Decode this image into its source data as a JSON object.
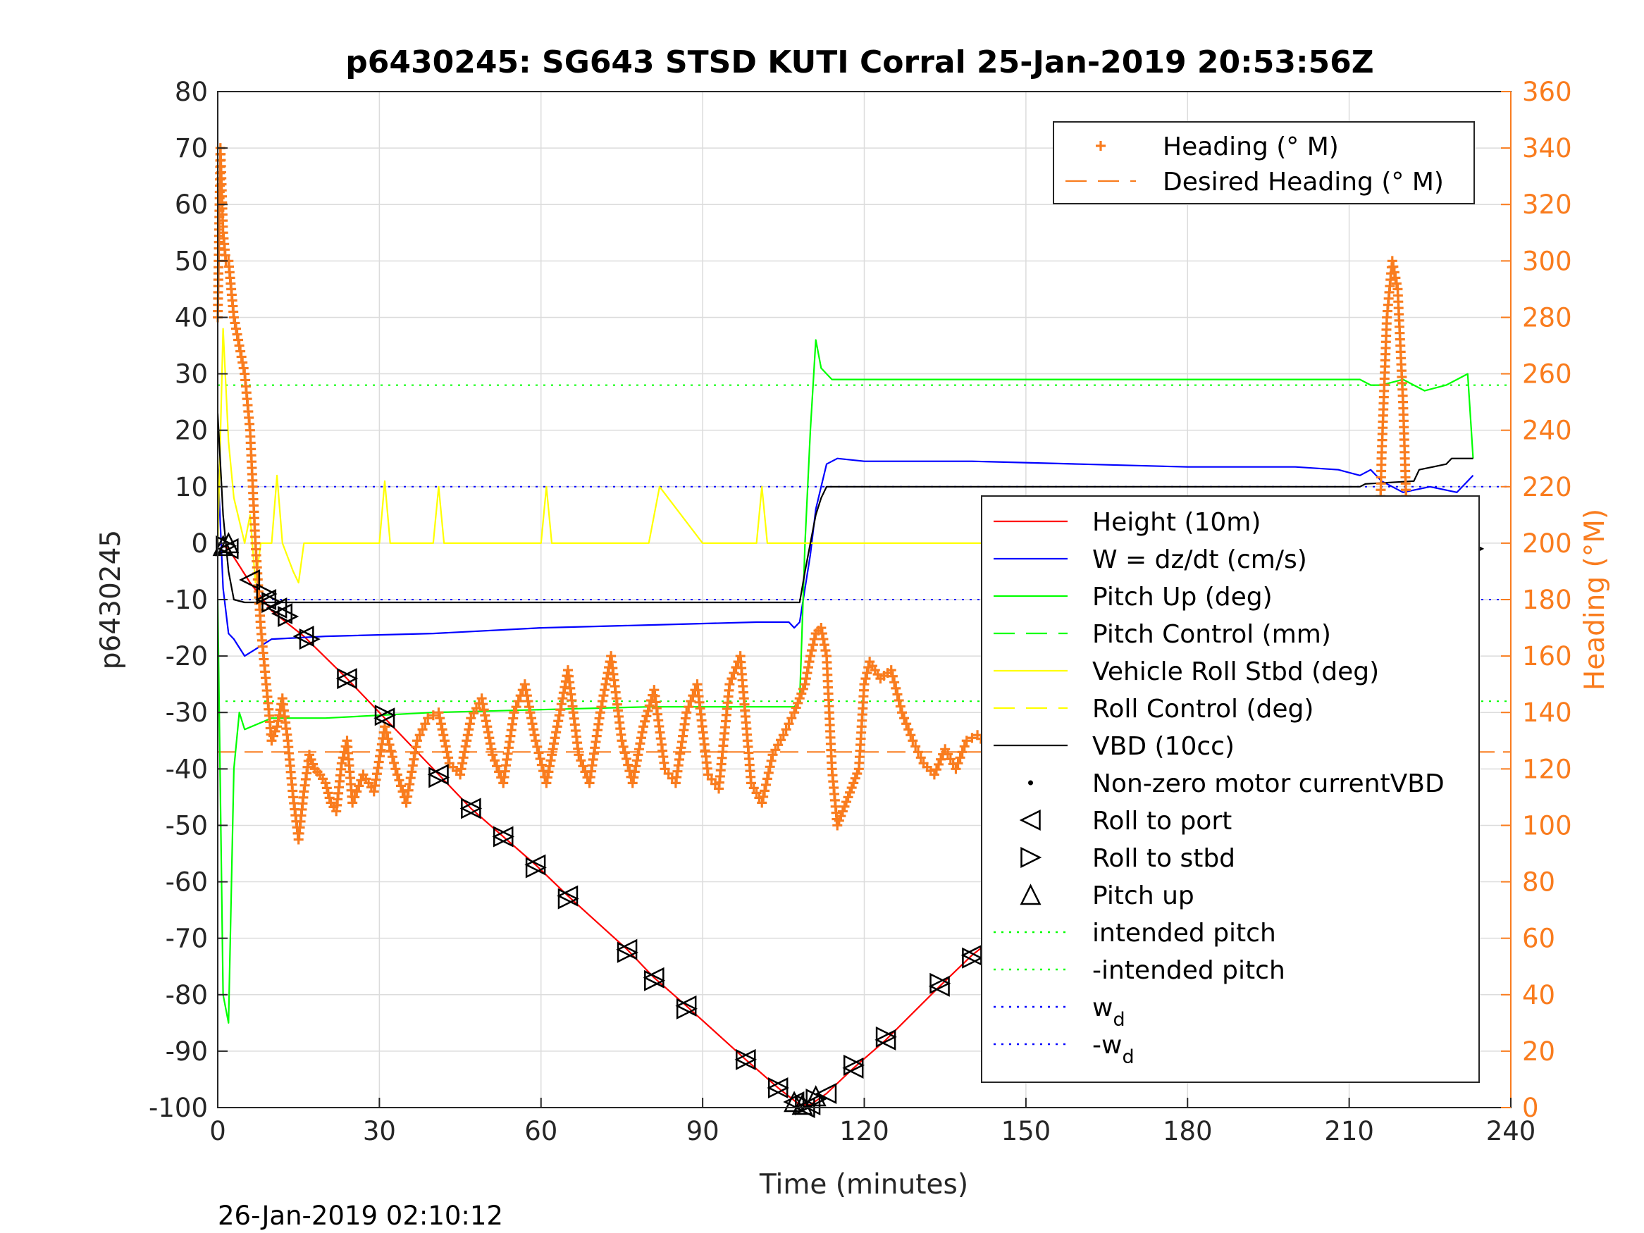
{
  "chart_data": {
    "type": "line",
    "title": "p6430245: SG643 STSD KUTI Corral 25-Jan-2019 20:53:56Z",
    "xlabel": "Time (minutes)",
    "ylabel": "p6430245",
    "ylabel_right": "Heading (°M)",
    "footer": "26-Jan-2019 02:10:12",
    "xlim": [
      0,
      240
    ],
    "ylim": [
      -100,
      80
    ],
    "ylim_right": [
      0,
      360
    ],
    "x_ticks": [
      "0",
      "30",
      "60",
      "90",
      "120",
      "150",
      "180",
      "210",
      "240"
    ],
    "y_ticks": [
      "-100",
      "-90",
      "-80",
      "-70",
      "-60",
      "-50",
      "-40",
      "-30",
      "-20",
      "-10",
      "0",
      "10",
      "20",
      "30",
      "40",
      "50",
      "60",
      "70",
      "80"
    ],
    "y_ticks_right": [
      "0",
      "20",
      "40",
      "60",
      "80",
      "100",
      "120",
      "140",
      "160",
      "180",
      "200",
      "220",
      "240",
      "260",
      "280",
      "300",
      "320",
      "340",
      "360"
    ],
    "grid": true,
    "legend_top": {
      "placement": "top-right",
      "entries": [
        {
          "label": "Heading (° M)",
          "color": "#f97c1e",
          "style": "plus"
        },
        {
          "label": "Desired Heading (° M)",
          "color": "#f97c1e",
          "style": "dash"
        }
      ]
    },
    "legend_main": {
      "placement": "right",
      "entries": [
        {
          "label": "Height (10m)",
          "color": "#ff0000",
          "style": "line"
        },
        {
          "label": "W = dz/dt (cm/s)",
          "color": "#0000ff",
          "style": "line"
        },
        {
          "label": "Pitch Up (deg)",
          "color": "#00ff00",
          "style": "line"
        },
        {
          "label": "Pitch Control (mm)",
          "color": "#00ff00",
          "style": "dash"
        },
        {
          "label": "Vehicle Roll Stbd (deg)",
          "color": "#ffff00",
          "style": "line"
        },
        {
          "label": "Roll Control (deg)",
          "color": "#ffff00",
          "style": "dash"
        },
        {
          "label": "VBD (10cc)",
          "color": "#000000",
          "style": "line"
        },
        {
          "label": "Non-zero motor currentVBD",
          "color": "#000000",
          "style": "dot"
        },
        {
          "label": "Roll to port",
          "color": "#000000",
          "style": "tri-left"
        },
        {
          "label": "Roll to stbd",
          "color": "#000000",
          "style": "tri-right"
        },
        {
          "label": "Pitch up",
          "color": "#000000",
          "style": "tri-up"
        },
        {
          "label": "intended pitch",
          "color": "#00ff00",
          "style": "dotted"
        },
        {
          "label": "-intended pitch",
          "color": "#00ff00",
          "style": "dotted"
        },
        {
          "label": "w",
          "sub": "d",
          "color": "#0000ff",
          "style": "dotted"
        },
        {
          "label": "-w",
          "sub": "d",
          "color": "#0000ff",
          "style": "dotted"
        }
      ]
    },
    "reference_lines": {
      "intended_pitch": 28,
      "neg_intended_pitch": -28,
      "w_d": 10,
      "neg_w_d": -10,
      "desired_heading": 126
    },
    "series": [
      {
        "name": "Height (10m)",
        "color": "#ff0000",
        "x": [
          0,
          2,
          6,
          10,
          16,
          24,
          31,
          41,
          47,
          53,
          59,
          65,
          76,
          81,
          87,
          98,
          104,
          108,
          110,
          113,
          118,
          124,
          134,
          140,
          146,
          152,
          157,
          162,
          178,
          184,
          190,
          196,
          202,
          206,
          210,
          213,
          221,
          224,
          232
        ],
        "values": [
          0,
          -1,
          -7,
          -12,
          -16.5,
          -24,
          -31,
          -41,
          -47,
          -52,
          -57,
          -62.5,
          -72,
          -77,
          -82,
          -91.5,
          -96.5,
          -99.5,
          -99.5,
          -97.5,
          -93,
          -88,
          -78.5,
          -73,
          -68.5,
          -63.5,
          -59,
          -54,
          -40,
          -35.5,
          -31,
          -26,
          -21,
          -17.5,
          -15,
          -13,
          -7,
          -5,
          -1.5
        ]
      },
      {
        "name": "W = dz/dt (cm/s)",
        "color": "#0000ff",
        "x": [
          0,
          1,
          2,
          3,
          5,
          10,
          20,
          40,
          60,
          80,
          100,
          106,
          107,
          108,
          109,
          110,
          111,
          112,
          113,
          115,
          120,
          140,
          160,
          180,
          200,
          208,
          212,
          214,
          216,
          220,
          225,
          230,
          233
        ],
        "values": [
          14,
          -8,
          -16,
          -17,
          -20,
          -17,
          -16.5,
          -16,
          -15,
          -14.5,
          -14,
          -14,
          -15,
          -14,
          -8,
          -2,
          6,
          10,
          14,
          15,
          14.5,
          14.5,
          14,
          13.5,
          13.5,
          13,
          12,
          13,
          11,
          9,
          10,
          9,
          12
        ]
      },
      {
        "name": "Pitch Up (deg)",
        "color": "#00ff00",
        "x": [
          0,
          1,
          2,
          3,
          4,
          5,
          10,
          20,
          40,
          60,
          80,
          100,
          107,
          108,
          109,
          110,
          111,
          112,
          114,
          120,
          140,
          160,
          180,
          200,
          212,
          214,
          216,
          220,
          224,
          228,
          232,
          233
        ],
        "values": [
          -10,
          -80,
          -85,
          -40,
          -30,
          -33,
          -31,
          -31,
          -30,
          -29.5,
          -29,
          -29,
          -29,
          -28,
          0,
          20,
          36,
          31,
          29,
          29,
          29,
          29,
          29,
          29,
          29,
          28,
          28,
          29,
          27,
          28,
          30,
          15
        ]
      },
      {
        "name": "Vehicle Roll Stbd (deg)",
        "color": "#ffff00",
        "x": [
          0,
          1,
          2,
          3,
          5,
          6,
          7,
          8,
          10,
          11,
          12,
          14,
          15,
          16,
          20,
          30,
          31,
          32,
          40,
          41,
          42,
          48,
          60,
          61,
          62,
          64,
          70,
          80,
          82,
          90,
          100,
          101,
          102,
          110,
          120,
          140,
          160,
          180,
          200,
          206,
          210,
          214,
          216,
          220,
          224,
          228,
          232
        ],
        "values": [
          0,
          38,
          18,
          8,
          0,
          5,
          -7,
          0,
          0,
          12,
          0,
          -5,
          -7,
          0,
          0,
          0,
          11,
          0,
          0,
          10,
          0,
          0,
          0,
          10,
          0,
          0,
          0,
          0,
          10,
          0,
          0,
          10,
          0,
          0,
          0,
          0,
          0,
          0,
          0,
          0,
          0,
          0,
          -6,
          -7,
          8,
          5,
          8
        ]
      },
      {
        "name": "VBD (10cc)",
        "color": "#000000",
        "x": [
          0,
          1,
          2,
          3,
          5,
          20,
          50,
          80,
          100,
          108,
          109,
          110,
          111,
          112,
          113,
          116,
          140,
          180,
          212,
          213,
          222,
          223,
          228,
          229,
          233
        ],
        "values": [
          23,
          5,
          -5,
          -10,
          -10.5,
          -10.5,
          -10.5,
          -10.5,
          -10.5,
          -10.5,
          -5,
          0,
          5,
          8,
          10,
          10,
          10,
          10,
          10,
          10.5,
          11,
          13,
          14,
          15,
          15
        ]
      }
    ],
    "heading_series": {
      "name": "Heading (° M)",
      "color": "#f97c1e",
      "x": [
        0,
        0.5,
        1,
        1.5,
        2,
        2.5,
        3,
        4,
        5,
        6,
        6.5,
        7,
        8,
        9,
        10,
        11,
        12,
        13,
        14,
        15,
        16,
        17,
        18,
        19,
        20,
        21,
        22,
        23,
        24,
        25,
        27,
        29,
        31,
        33,
        35,
        37,
        39,
        41,
        43,
        45,
        47,
        49,
        51,
        53,
        55,
        57,
        59,
        61,
        63,
        65,
        67,
        69,
        71,
        73,
        75,
        77,
        79,
        81,
        83,
        85,
        87,
        89,
        91,
        93,
        95,
        97,
        99,
        101,
        103,
        105,
        107,
        108,
        109,
        110,
        111,
        112,
        113,
        114,
        115,
        116,
        117,
        118,
        119,
        120,
        121,
        122,
        123,
        125,
        127,
        129,
        131,
        133,
        135,
        137,
        139,
        141,
        143,
        145,
        147,
        149,
        151,
        153,
        155,
        157,
        159,
        161,
        163,
        165,
        167,
        169,
        171,
        173,
        175,
        177,
        179,
        181,
        183,
        185,
        187,
        189,
        191,
        193,
        195,
        197,
        199,
        201,
        203,
        205,
        207,
        209,
        211,
        213,
        215,
        216,
        217,
        218,
        219,
        220,
        221,
        222,
        223,
        224,
        225,
        226,
        227,
        228,
        229,
        230,
        231,
        232
      ],
      "values": [
        280,
        340,
        310,
        300,
        300,
        290,
        280,
        270,
        260,
        240,
        220,
        200,
        170,
        150,
        130,
        135,
        145,
        130,
        110,
        95,
        112,
        125,
        120,
        118,
        115,
        108,
        105,
        122,
        130,
        108,
        118,
        112,
        135,
        120,
        108,
        130,
        138,
        140,
        122,
        118,
        138,
        145,
        125,
        115,
        140,
        150,
        130,
        115,
        135,
        155,
        125,
        115,
        140,
        160,
        130,
        115,
        135,
        148,
        120,
        115,
        140,
        150,
        118,
        113,
        150,
        160,
        115,
        108,
        125,
        132,
        140,
        145,
        150,
        160,
        168,
        170,
        160,
        120,
        100,
        105,
        110,
        115,
        120,
        150,
        158,
        155,
        152,
        155,
        140,
        130,
        122,
        118,
        127,
        120,
        130,
        132,
        128,
        118,
        128,
        132,
        125,
        118,
        127,
        142,
        130,
        160,
        165,
        140,
        130,
        135,
        128,
        122,
        118,
        122,
        130,
        150,
        128,
        116,
        128,
        140,
        122,
        120,
        142,
        155,
        128,
        120,
        132,
        155,
        135,
        115,
        90,
        110,
        150,
        230,
        280,
        300,
        290,
        250,
        190,
        140,
        120,
        100,
        90,
        50,
        40,
        60,
        75,
        100,
        95,
        110
      ]
    },
    "motor_markers": {
      "port_x": [
        2,
        6,
        9,
        11,
        12,
        16,
        24,
        31,
        41,
        47,
        53,
        59,
        65,
        76,
        81,
        87,
        98,
        104,
        107,
        109,
        110,
        113,
        118,
        124,
        134,
        140,
        146,
        152,
        157,
        162,
        178,
        184,
        190,
        196,
        202,
        205,
        210,
        212,
        221,
        224,
        232
      ],
      "port_y": [
        -1,
        -6.5,
        -10,
        -11.5,
        -12.5,
        -16.5,
        -24,
        -31,
        -41,
        -47,
        -52,
        -57,
        -62.5,
        -72,
        -77,
        -82,
        -91.5,
        -96.5,
        -99,
        -100,
        -99.5,
        -97.5,
        -93,
        -88,
        -78.5,
        -73,
        -68.5,
        -63.5,
        -59,
        -54,
        -40,
        -35.5,
        -31,
        -26,
        -21,
        -18,
        -15,
        -13,
        -7,
        -5,
        -1.5
      ],
      "stbd_x": [
        1.5,
        9,
        10,
        13,
        17,
        24,
        31,
        41,
        47,
        53,
        59,
        65,
        76,
        81,
        87,
        98,
        104,
        109,
        111,
        118,
        124,
        134,
        140,
        146,
        152,
        157,
        163,
        178,
        185,
        191,
        196,
        203,
        207,
        211,
        222,
        225,
        233
      ],
      "stbd_y": [
        -0.5,
        -9,
        -10.5,
        -13,
        -17,
        -24,
        -30.5,
        -41.5,
        -47,
        -52,
        -57.5,
        -63,
        -72.5,
        -77.5,
        -82.5,
        -91.5,
        -96.5,
        -99.5,
        -98.5,
        -92.5,
        -87.5,
        -78,
        -73.5,
        -69,
        -64,
        -58.5,
        -54,
        -40,
        -35,
        -30.5,
        -25.5,
        -21,
        -17,
        -14.5,
        -6.5,
        -4.5,
        -1
      ],
      "pitchup_x": [
        1,
        2,
        107,
        108.5,
        111,
        152,
        153
      ],
      "pitchup_y": [
        -0.5,
        0,
        -99,
        -99.5,
        -98,
        -63.5,
        -61.5
      ]
    }
  }
}
